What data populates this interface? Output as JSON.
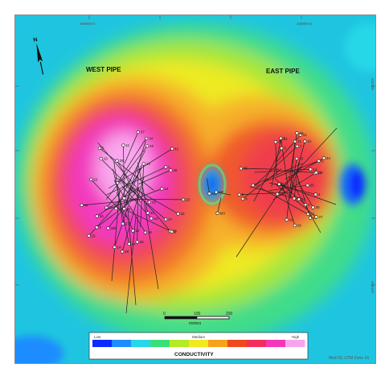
{
  "map": {
    "pipes": [
      {
        "id": "west",
        "label": "WEST PIPE"
      },
      {
        "id": "east",
        "label": "EAST PIPE"
      }
    ],
    "edge_labels": {
      "top_left": "489900 N",
      "top_right": "489900 N",
      "right_upper": "489400",
      "right_lower": "489400"
    },
    "north_arrow": "N"
  },
  "scale_bar": {
    "ticks": [
      "0",
      "100",
      "200"
    ],
    "unit": "meters"
  },
  "legend": {
    "title": "CONDUCTIVITY",
    "low_label": "Low",
    "mid_label": "Medium",
    "high_label": "High",
    "colors": [
      "#0a2bff",
      "#1e8cff",
      "#25d7e8",
      "#39e07a",
      "#b5ea25",
      "#f1ea1c",
      "#f7a21c",
      "#f0481e",
      "#f22f5a",
      "#f536b8",
      "#f9a3ef"
    ]
  },
  "drillholes": {
    "west": [
      "41",
      "43",
      "39",
      "36",
      "23",
      "18",
      "25",
      "2",
      "16",
      "21",
      "35",
      "34",
      "27",
      "28",
      "22",
      "40",
      "19",
      "5",
      "3",
      "37",
      "10",
      "24",
      "26",
      "15",
      "14",
      "29",
      "31",
      "39b",
      "33",
      "13",
      "44",
      "30",
      "1",
      "11",
      "12",
      "17",
      "20",
      "8"
    ],
    "east": [
      "12",
      "7",
      "16",
      "11",
      "14",
      "13",
      "8",
      "2",
      "4",
      "5",
      "9",
      "10",
      "15",
      "17",
      "18",
      "20",
      "21",
      "22",
      "24",
      "25",
      "26",
      "27",
      "29",
      "30",
      "31",
      "33",
      "34",
      "35",
      "23",
      "1",
      "3",
      "6"
    ],
    "middle": [
      "M1",
      "M2",
      "M3"
    ]
  },
  "credit": "Mod 03, UTM Zone 16"
}
